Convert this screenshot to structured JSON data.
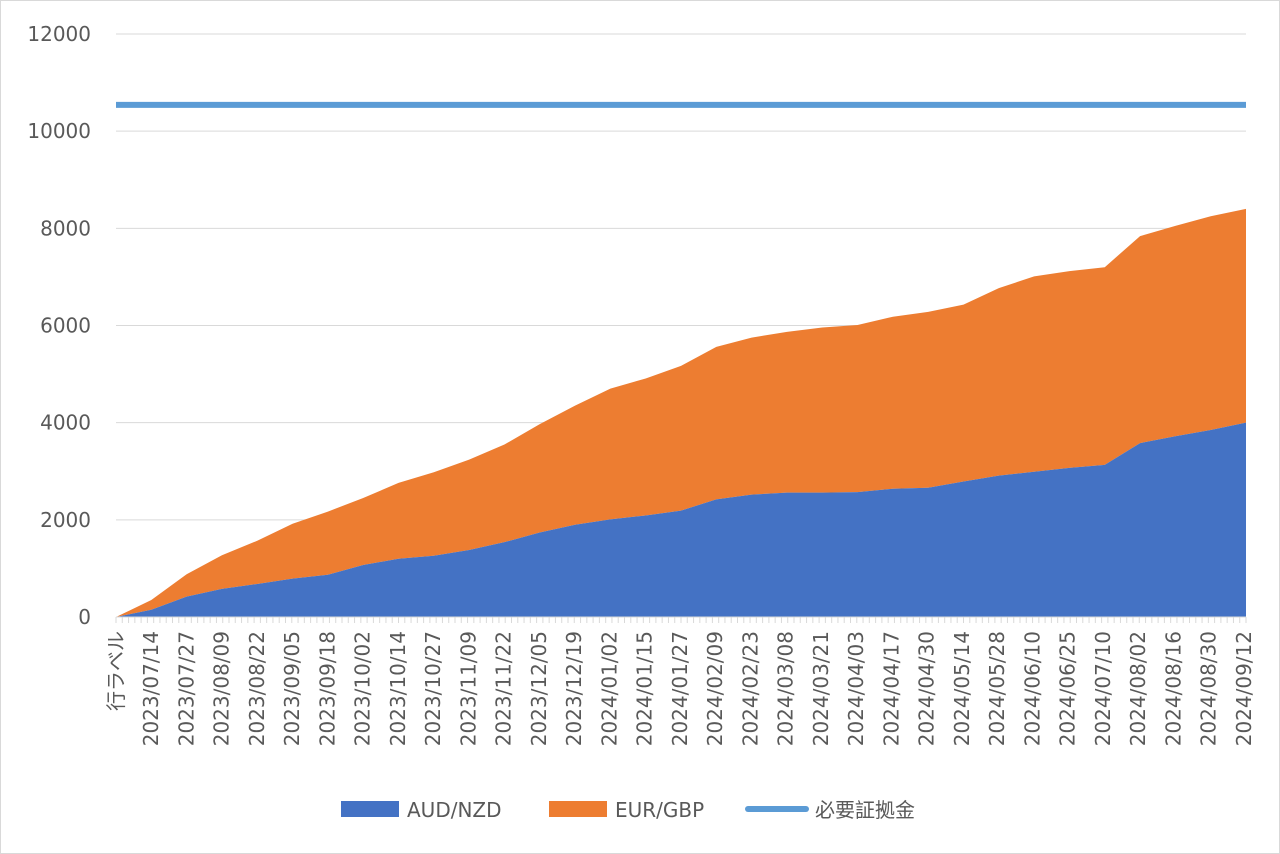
{
  "colors": {
    "aud_nzd": "#4472C4",
    "eur_gbp": "#ED7D31",
    "margin": "#5B9BD5",
    "grid": "#d9d9d9",
    "text": "#595959"
  },
  "chart_data": {
    "type": "area",
    "stacked": true,
    "title": "",
    "xlabel": "",
    "ylabel": "",
    "ylim": [
      0,
      12000
    ],
    "yticks": [
      0,
      2000,
      4000,
      6000,
      8000,
      10000,
      12000
    ],
    "grid": true,
    "legend_position": "bottom",
    "x_first_label": "行ラベル",
    "x_tick_labels": [
      "2023/07/14",
      "2023/07/27",
      "2023/08/09",
      "2023/08/22",
      "2023/09/05",
      "2023/09/18",
      "2023/10/02",
      "2023/10/14",
      "2023/10/27",
      "2023/11/09",
      "2023/11/22",
      "2023/12/05",
      "2023/12/19",
      "2024/01/02",
      "2024/01/15",
      "2024/01/27",
      "2024/02/09",
      "2024/02/23",
      "2024/03/08",
      "2024/03/21",
      "2024/04/03",
      "2024/04/17",
      "2024/04/30",
      "2024/05/14",
      "2024/05/28",
      "2024/06/10",
      "2024/06/25",
      "2024/07/10",
      "2024/08/02",
      "2024/08/16",
      "2024/08/30",
      "2024/09/12"
    ],
    "x": [
      "行ラベル",
      "2023/07/14",
      "2023/07/27",
      "2023/08/09",
      "2023/08/22",
      "2023/09/05",
      "2023/09/18",
      "2023/10/02",
      "2023/10/14",
      "2023/10/27",
      "2023/11/09",
      "2023/11/22",
      "2023/12/05",
      "2023/12/19",
      "2024/01/02",
      "2024/01/15",
      "2024/01/27",
      "2024/02/09",
      "2024/02/23",
      "2024/03/08",
      "2024/03/21",
      "2024/04/03",
      "2024/04/17",
      "2024/04/30",
      "2024/05/14",
      "2024/05/28",
      "2024/06/10",
      "2024/06/25",
      "2024/07/10",
      "2024/08/02",
      "2024/08/16",
      "2024/08/30",
      "2024/09/12"
    ],
    "series": [
      {
        "name": "AUD/NZD",
        "kind": "area",
        "values": [
          0,
          150,
          420,
          580,
          680,
          790,
          870,
          1070,
          1200,
          1260,
          1380,
          1540,
          1740,
          1900,
          2010,
          2090,
          2190,
          2420,
          2520,
          2560,
          2560,
          2570,
          2640,
          2660,
          2790,
          2910,
          2990,
          3070,
          3130,
          3580,
          3720,
          3850,
          4000
        ]
      },
      {
        "name": "EUR/GBP",
        "kind": "area",
        "values": [
          0,
          200,
          460,
          690,
          890,
          1130,
          1300,
          1380,
          1560,
          1720,
          1860,
          2010,
          2230,
          2450,
          2690,
          2820,
          2980,
          3140,
          3230,
          3310,
          3400,
          3440,
          3540,
          3620,
          3640,
          3860,
          4020,
          4050,
          4070,
          4260,
          4330,
          4400,
          4400
        ]
      },
      {
        "name": "必要証拠金",
        "kind": "line",
        "values": [
          10540,
          10540,
          10540,
          10540,
          10540,
          10540,
          10540,
          10540,
          10540,
          10540,
          10540,
          10540,
          10540,
          10540,
          10540,
          10540,
          10540,
          10540,
          10540,
          10540,
          10540,
          10540,
          10540,
          10540,
          10540,
          10540,
          10540,
          10540,
          10540,
          10540,
          10540,
          10540,
          10540
        ]
      }
    ]
  },
  "legend": {
    "items": [
      {
        "label": "AUD/NZD",
        "kind": "area"
      },
      {
        "label": "EUR/GBP",
        "kind": "area"
      },
      {
        "label": "必要証拠金",
        "kind": "line"
      }
    ]
  }
}
